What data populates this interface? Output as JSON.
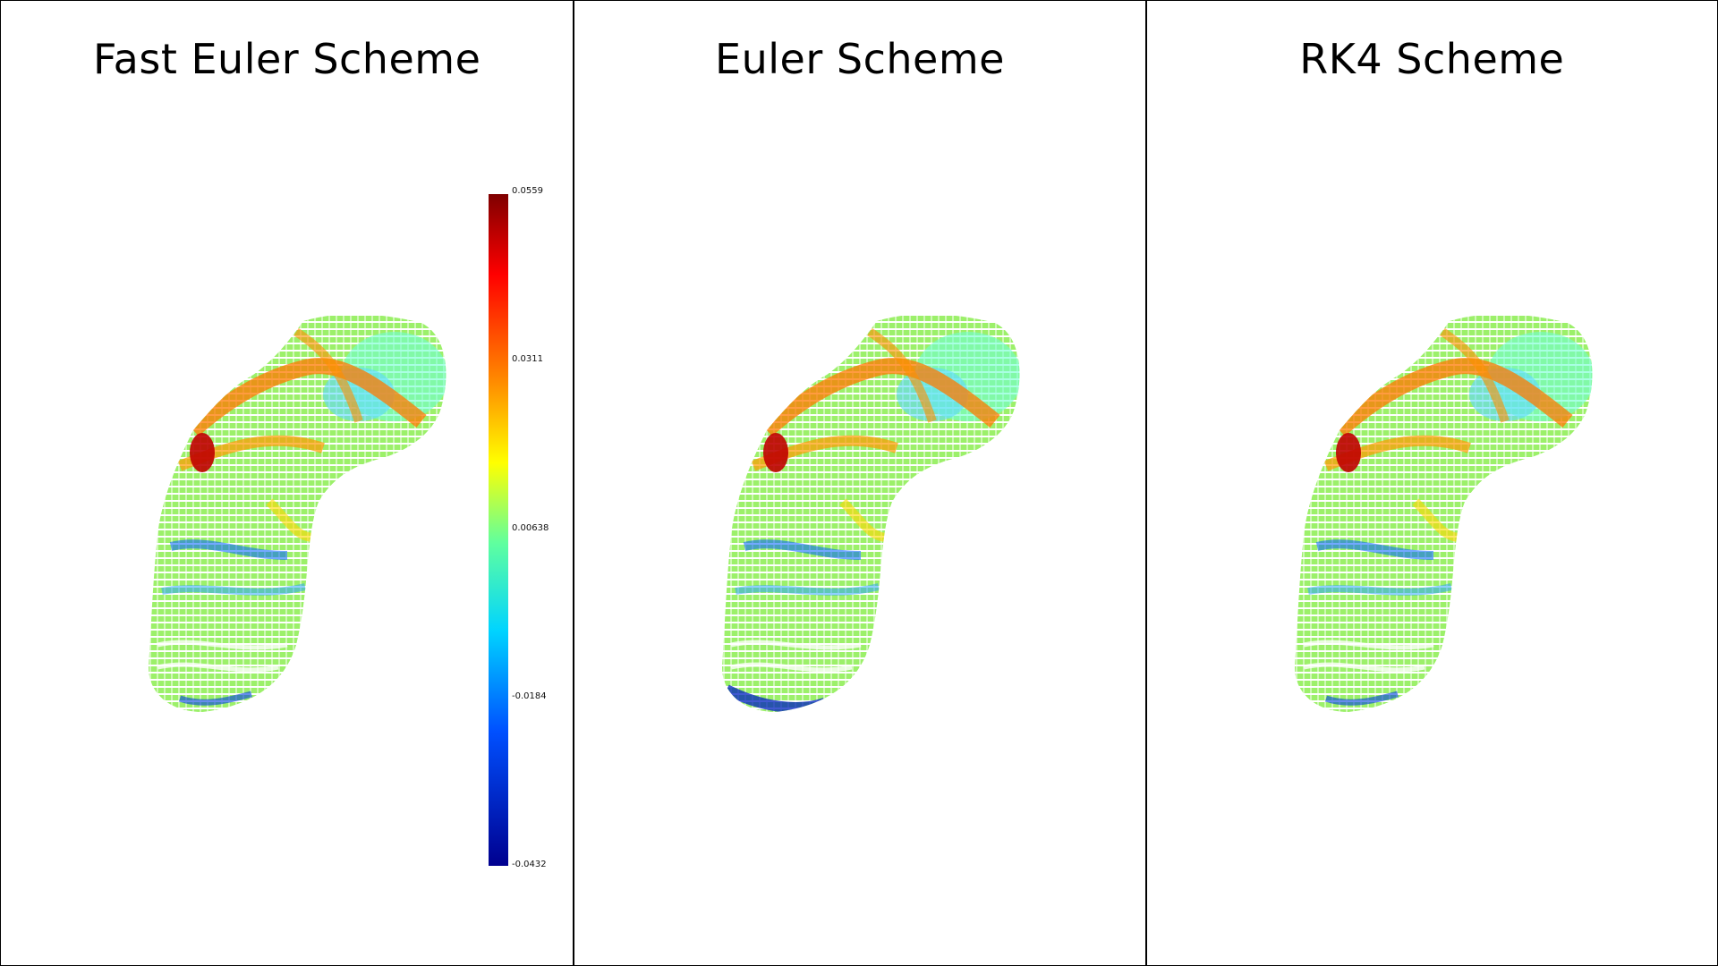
{
  "panels": [
    {
      "title": "Fast Euler Scheme"
    },
    {
      "title": "Euler Scheme"
    },
    {
      "title": "RK4 Scheme"
    }
  ],
  "colorbar": {
    "ticks": [
      "0.0559",
      "0.0311",
      "0.00638",
      "-0.0184",
      "-0.0432"
    ],
    "colormap": "jet",
    "colors": [
      "#7f0000",
      "#ff0000",
      "#ff8c00",
      "#ffff00",
      "#5fff9f",
      "#00d4ff",
      "#0050ff",
      "#00008f"
    ]
  }
}
